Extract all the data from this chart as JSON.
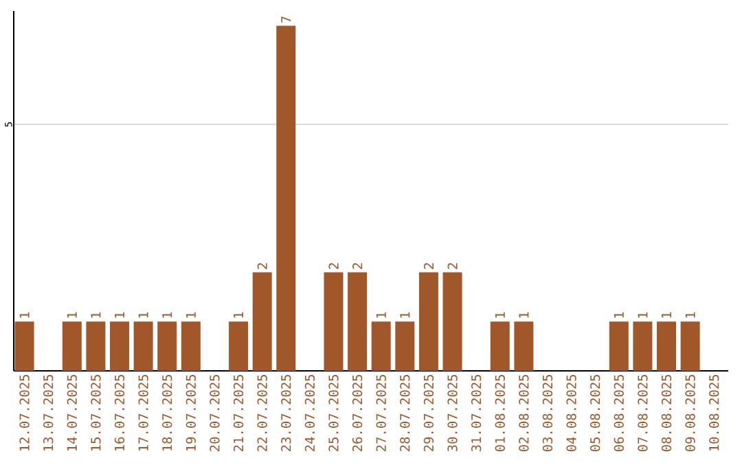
{
  "chart_data": {
    "type": "bar",
    "categories": [
      "12.07.2025",
      "13.07.2025",
      "14.07.2025",
      "15.07.2025",
      "16.07.2025",
      "17.07.2025",
      "18.07.2025",
      "19.07.2025",
      "20.07.2025",
      "21.07.2025",
      "22.07.2025",
      "23.07.2025",
      "24.07.2025",
      "25.07.2025",
      "26.07.2025",
      "27.07.2025",
      "28.07.2025",
      "29.07.2025",
      "30.07.2025",
      "31.07.2025",
      "01.08.2025",
      "02.08.2025",
      "03.08.2025",
      "04.08.2025",
      "05.08.2025",
      "06.08.2025",
      "07.08.2025",
      "08.08.2025",
      "09.08.2025",
      "10.08.2025"
    ],
    "values": [
      1,
      0,
      1,
      1,
      1,
      1,
      1,
      1,
      0,
      1,
      2,
      7,
      0,
      2,
      2,
      1,
      1,
      2,
      2,
      0,
      1,
      1,
      0,
      0,
      0,
      1,
      1,
      1,
      1,
      0
    ],
    "value_labels": [
      "1",
      null,
      "1",
      "1",
      "1",
      "1",
      "1",
      "1",
      null,
      "1",
      "2",
      "7",
      null,
      "2",
      "2",
      "1",
      "1",
      "2",
      "2",
      null,
      "1",
      "1",
      null,
      null,
      null,
      "1",
      "1",
      "1",
      "1",
      null
    ],
    "color": "#a0572a",
    "ylim": [
      0,
      7.3
    ],
    "yticks": [
      5
    ],
    "grid": "y"
  }
}
